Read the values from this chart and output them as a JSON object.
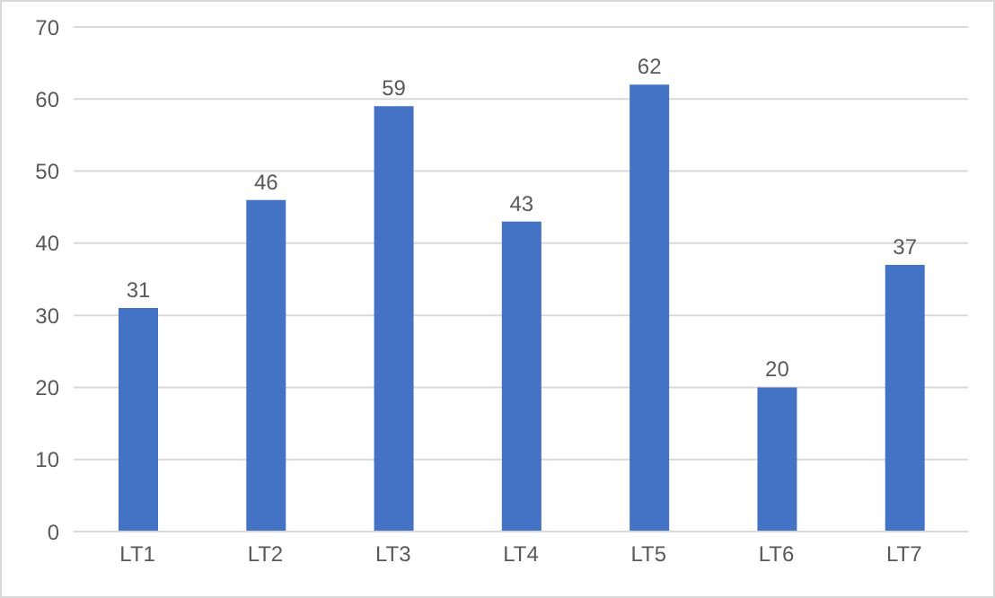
{
  "chart_data": {
    "type": "bar",
    "categories": [
      "LT1",
      "LT2",
      "LT3",
      "LT4",
      "LT5",
      "LT6",
      "LT7"
    ],
    "values": [
      31,
      46,
      59,
      43,
      62,
      20,
      37
    ],
    "color": "#4472c4",
    "ylim": [
      0,
      70
    ],
    "yticks": [
      0,
      10,
      20,
      30,
      40,
      50,
      60,
      70
    ],
    "grid": "y",
    "data_labels": true
  }
}
